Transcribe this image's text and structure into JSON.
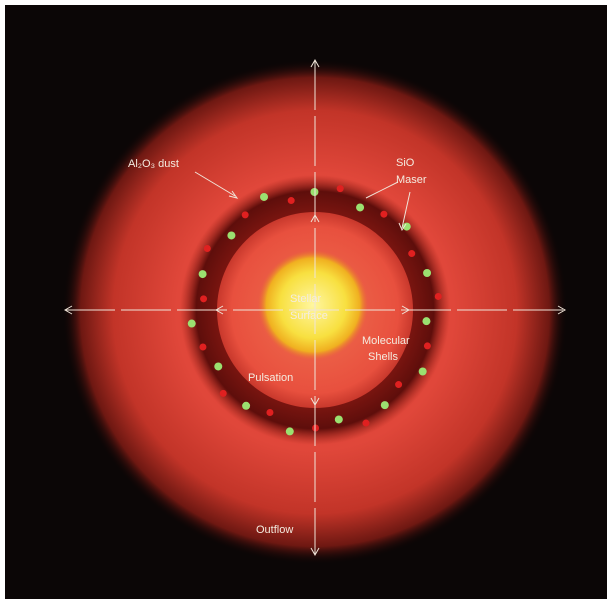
{
  "labels": {
    "dust": "Al₂O₃ dust",
    "maser": [
      "SiO",
      "Maser"
    ],
    "surface": [
      "Stellar",
      "Surface"
    ],
    "shells": [
      "Molecular",
      "Shells"
    ],
    "pulsation": "Pulsation",
    "outflow": "Outflow"
  }
}
